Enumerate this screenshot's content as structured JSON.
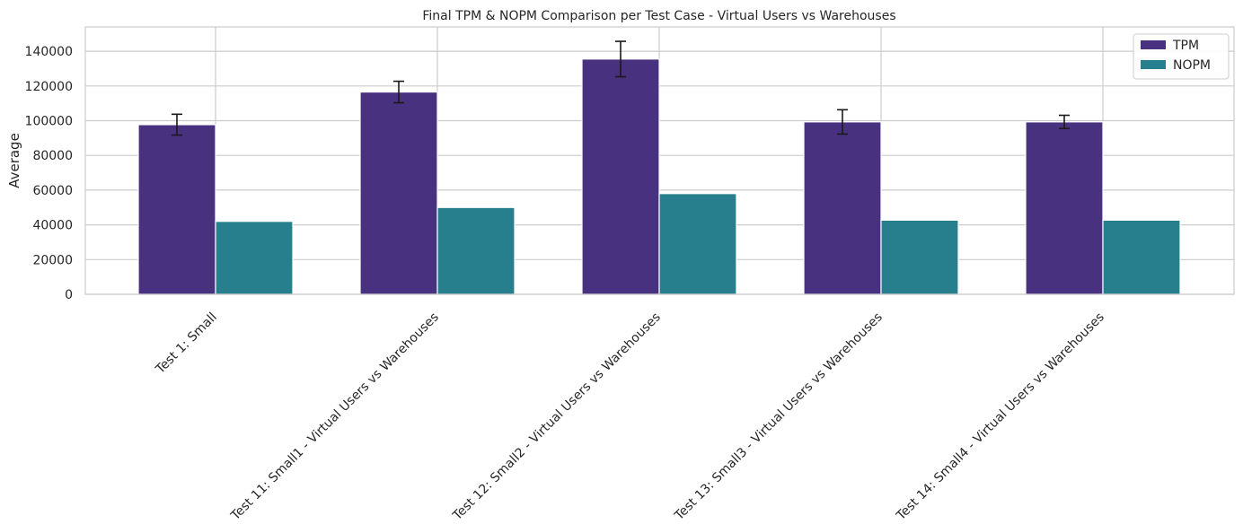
{
  "chart_data": {
    "type": "bar",
    "title": "Final TPM & NOPM Comparison per Test Case - Virtual Users vs Warehouses",
    "xlabel": "",
    "ylabel": "Average",
    "ylim": [
      0,
      154000
    ],
    "yticks": [
      0,
      20000,
      40000,
      60000,
      80000,
      100000,
      120000,
      140000
    ],
    "grid": true,
    "legend_position": "top-right",
    "categories": [
      "Test 1: Small",
      "Test 11: Small1 - Virtual Users vs Warehouses",
      "Test 12: Small2 - Virtual Users vs Warehouses",
      "Test 13: Small3 - Virtual Users vs Warehouses",
      "Test 14: Small4 - Virtual Users vs Warehouses"
    ],
    "series": [
      {
        "name": "TPM",
        "color": "#48317e",
        "values": [
          97700,
          116500,
          135500,
          99300,
          99300
        ],
        "error": [
          6000,
          6200,
          10200,
          7000,
          3800
        ]
      },
      {
        "name": "NOPM",
        "color": "#277f8e",
        "values": [
          42000,
          50000,
          58000,
          42700,
          42700
        ]
      }
    ]
  }
}
